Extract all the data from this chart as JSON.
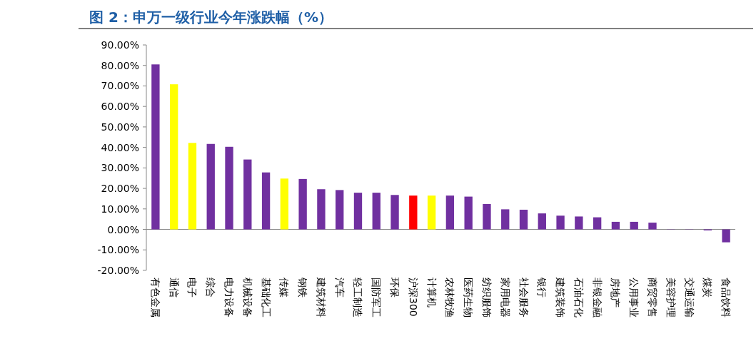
{
  "chart_data": {
    "type": "bar",
    "title": "图 2：申万一级行业今年涨跌幅（%）",
    "categories": [
      "有色金属",
      "通信",
      "电子",
      "综合",
      "电力设备",
      "机械设备",
      "基础化工",
      "传媒",
      "钢铁",
      "建筑材料",
      "汽车",
      "轻工制造",
      "国防军工",
      "环保",
      "沪深300",
      "计算机",
      "农林牧渔",
      "医药生物",
      "纺织服饰",
      "家用电器",
      "社会服务",
      "银行",
      "建筑装饰",
      "石油石化",
      "非银金融",
      "房地产",
      "公用事业",
      "商贸零售",
      "美容护理",
      "交通运输",
      "煤炭",
      "食品饮料"
    ],
    "values": [
      80.5,
      70.8,
      42.2,
      41.7,
      40.3,
      34.1,
      27.8,
      24.8,
      24.6,
      19.6,
      19.2,
      17.9,
      17.9,
      16.8,
      16.5,
      16.5,
      16.5,
      16.0,
      12.4,
      9.8,
      9.6,
      7.8,
      6.7,
      6.3,
      5.9,
      3.7,
      3.7,
      3.3,
      0.1,
      0.1,
      -0.5,
      -6.3
    ],
    "colors": [
      "#7030a0",
      "#ffff00",
      "#ffff00",
      "#7030a0",
      "#7030a0",
      "#7030a0",
      "#7030a0",
      "#ffff00",
      "#7030a0",
      "#7030a0",
      "#7030a0",
      "#7030a0",
      "#7030a0",
      "#7030a0",
      "#ff0000",
      "#ffff00",
      "#7030a0",
      "#7030a0",
      "#7030a0",
      "#7030a0",
      "#7030a0",
      "#7030a0",
      "#7030a0",
      "#7030a0",
      "#7030a0",
      "#7030a0",
      "#7030a0",
      "#7030a0",
      "#7030a0",
      "#7030a0",
      "#7030a0",
      "#7030a0"
    ],
    "ylim": [
      -20,
      90
    ],
    "yticks": [
      {
        "value": -20,
        "label": "-20.00%"
      },
      {
        "value": -10,
        "label": "-10.00%"
      },
      {
        "value": 0,
        "label": "0.00%"
      },
      {
        "value": 10,
        "label": "10.00%"
      },
      {
        "value": 20,
        "label": "20.00%"
      },
      {
        "value": 30,
        "label": "30.00%"
      },
      {
        "value": 40,
        "label": "40.00%"
      },
      {
        "value": 50,
        "label": "50.00%"
      },
      {
        "value": 60,
        "label": "60.00%"
      },
      {
        "value": 70,
        "label": "70.00%"
      },
      {
        "value": 80,
        "label": "80.00%"
      },
      {
        "value": 90,
        "label": "90.00%"
      }
    ]
  }
}
